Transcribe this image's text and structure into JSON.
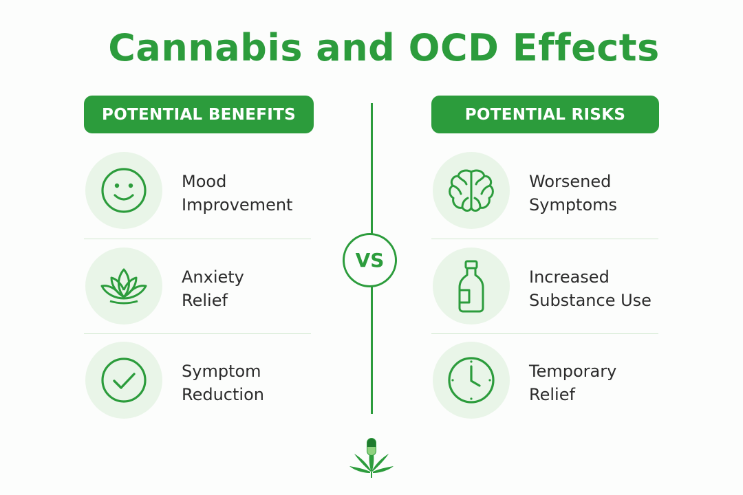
{
  "title": "Cannabis and OCD Effects",
  "benefits": {
    "heading": "POTENTIAL BENEFITS",
    "items": [
      {
        "line1": "Mood",
        "line2": "Improvement",
        "icon": "smiley-icon"
      },
      {
        "line1": "Anxiety",
        "line2": "Relief",
        "icon": "lotus-icon"
      },
      {
        "line1": "Symptom",
        "line2": "Reduction",
        "icon": "check-circle-icon"
      }
    ]
  },
  "risks": {
    "heading": "POTENTIAL RISKS",
    "items": [
      {
        "line1": "Worsened",
        "line2": "Symptoms",
        "icon": "brain-icon"
      },
      {
        "line1": "Increased",
        "line2": "Substance Use",
        "icon": "bottle-icon"
      },
      {
        "line1": "Temporary",
        "line2": "Relief",
        "icon": "clock-icon"
      }
    ]
  },
  "vs_label": "VS",
  "colors": {
    "accent": "#2c9c3c",
    "icon_bg": "#e9f5e8",
    "text": "#2b2b2b"
  }
}
